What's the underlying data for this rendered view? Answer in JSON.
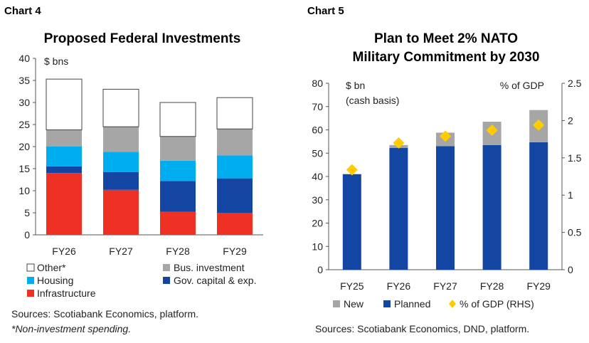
{
  "chart_data": [
    {
      "type": "bar",
      "stacked": true,
      "label": "Chart 4",
      "title": "Proposed Federal Investments",
      "ylabel": "$ bns",
      "ylim": [
        0,
        40
      ],
      "yticks": [
        0,
        5,
        10,
        15,
        20,
        25,
        30,
        35,
        40
      ],
      "categories": [
        "FY26",
        "FY27",
        "FY28",
        "FY29"
      ],
      "series": [
        {
          "name": "Infrastructure",
          "color": "#ee3124",
          "values": [
            14.0,
            10.2,
            5.2,
            5.0
          ]
        },
        {
          "name": "Gov. capital & exp.",
          "color": "#1346a3",
          "values": [
            1.5,
            4.0,
            7.0,
            7.8
          ]
        },
        {
          "name": "Housing",
          "color": "#00aeef",
          "values": [
            4.5,
            4.6,
            4.6,
            5.2
          ]
        },
        {
          "name": "Bus. investment",
          "color": "#a6a6a6",
          "values": [
            3.8,
            5.7,
            5.5,
            6.0
          ]
        },
        {
          "name": "Other*",
          "color": "#ffffff",
          "values": [
            11.5,
            8.5,
            7.7,
            7.1
          ]
        }
      ],
      "legend_order": [
        "Other*",
        "Bus. investment",
        "Housing",
        "Gov. capital & exp.",
        "Infrastructure"
      ],
      "source": "Sources: Scotiabank Economics, platform.",
      "note": "*Non-investment spending."
    },
    {
      "type": "bar",
      "stacked": true,
      "label": "Chart 5",
      "title": "Plan to Meet 2% NATO",
      "title2": "Military Commitment by 2030",
      "ylabel": "$ bn",
      "ylabel2": "(cash basis)",
      "ylabel_right": "% of GDP",
      "ylim": [
        0,
        80
      ],
      "yticks": [
        0,
        10,
        20,
        30,
        40,
        50,
        60,
        70,
        80
      ],
      "ylim_right": [
        0,
        2.5
      ],
      "yticks_right": [
        "0",
        "0.5",
        "1",
        "1.5",
        "2",
        "2.5"
      ],
      "categories": [
        "FY25",
        "FY26",
        "FY27",
        "FY28",
        "FY29"
      ],
      "series": [
        {
          "name": "Planned",
          "color": "#1346a3",
          "values": [
            41.0,
            52.3,
            53.0,
            53.5,
            54.7
          ]
        },
        {
          "name": "New",
          "color": "#a6a6a6",
          "values": [
            0.0,
            1.2,
            5.8,
            10.0,
            13.8
          ]
        }
      ],
      "line_series": {
        "name": "% of GDP (RHS)",
        "color": "#ffcc00",
        "values": [
          1.34,
          1.7,
          1.79,
          1.87,
          1.94
        ]
      },
      "legend_order": [
        "New",
        "Planned",
        "% of GDP (RHS)"
      ],
      "source": "Sources: Scotiabank Economics, DND, platform."
    }
  ]
}
